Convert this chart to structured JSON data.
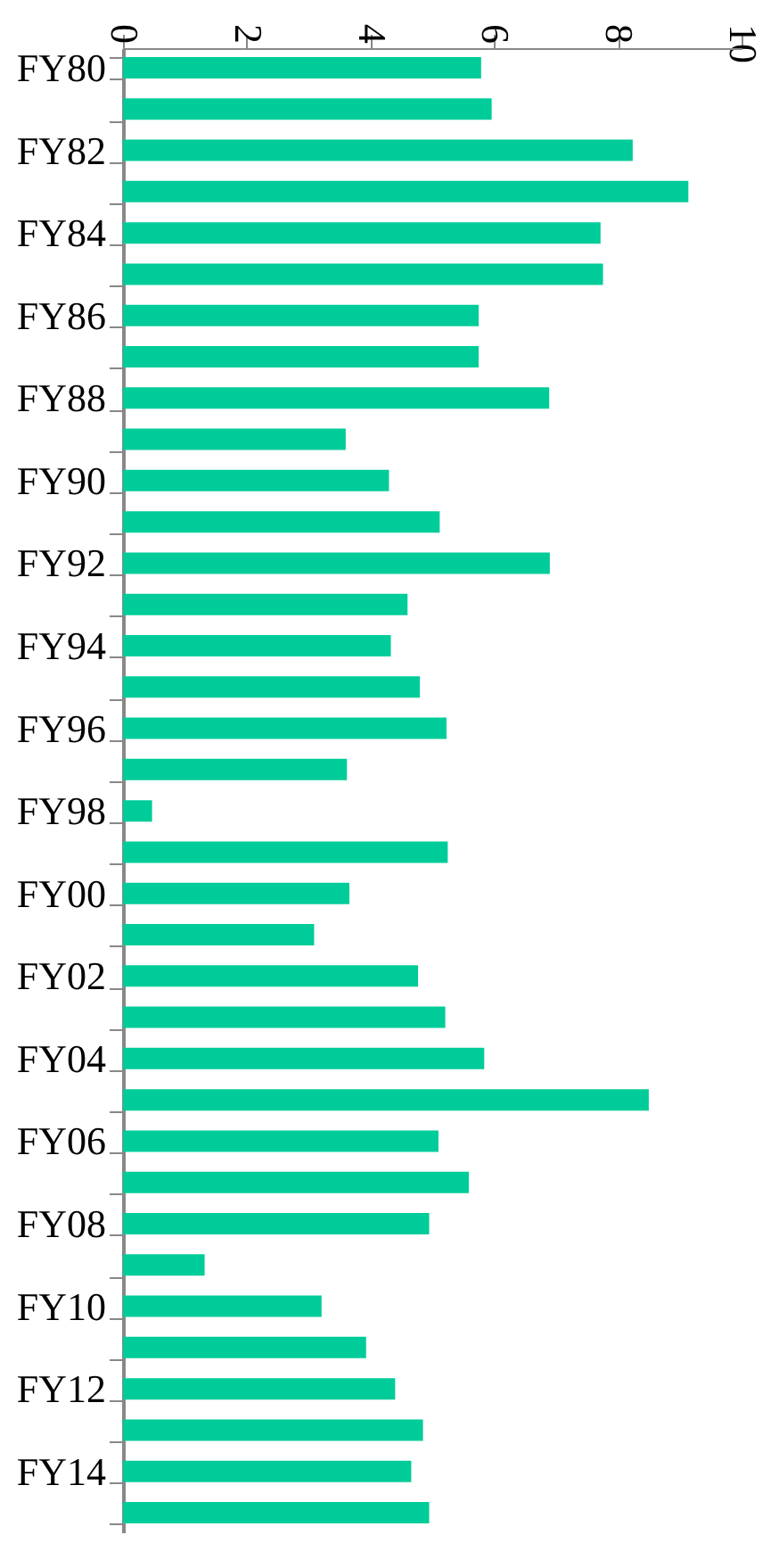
{
  "chart_data": {
    "type": "bar",
    "orientation": "horizontal",
    "categories": [
      "FY80",
      null,
      "FY82",
      null,
      "FY84",
      null,
      "FY86",
      null,
      "FY88",
      null,
      "FY90",
      null,
      "FY92",
      null,
      "FY94",
      null,
      "FY96",
      null,
      "FY98",
      null,
      "FY00",
      null,
      "FY02",
      null,
      "FY04",
      null,
      "FY06",
      null,
      "FY08",
      null,
      "FY10",
      null,
      "FY12",
      null,
      "FY14",
      null
    ],
    "values": [
      5.79,
      5.96,
      8.24,
      9.14,
      7.72,
      7.76,
      5.75,
      5.75,
      6.89,
      3.6,
      4.3,
      5.12,
      6.9,
      4.6,
      4.33,
      4.8,
      5.23,
      3.62,
      0.47,
      5.25,
      3.66,
      3.09,
      4.77,
      5.21,
      5.84,
      8.5,
      5.1,
      5.59,
      4.95,
      1.32,
      3.21,
      3.93,
      4.4,
      4.85,
      4.66,
      4.95
    ],
    "color": "#00cc99",
    "xlim": [
      0,
      10
    ],
    "xticks": [
      0,
      2,
      4,
      6,
      8,
      10
    ],
    "grid": false
  }
}
